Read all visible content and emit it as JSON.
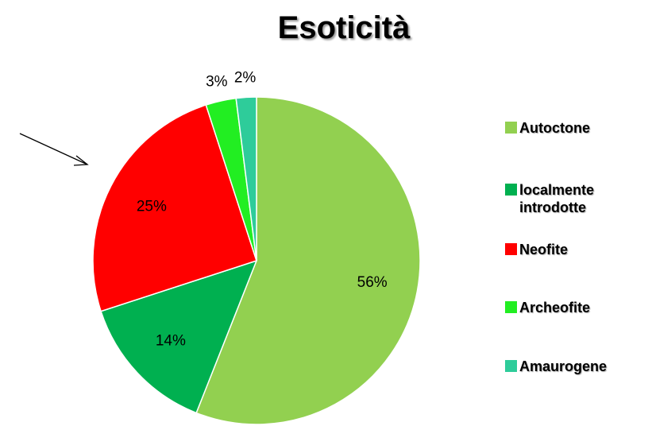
{
  "chart_data": {
    "type": "pie",
    "title": "Esoticità",
    "categories": [
      "Autoctone",
      "localmente introdotte",
      "Neofite",
      "Archeofite",
      "Amaurogene"
    ],
    "values": [
      56,
      14,
      25,
      3,
      2
    ],
    "value_labels": [
      "56%",
      "14%",
      "25%",
      "3%",
      "2%"
    ],
    "colors": [
      "#92d050",
      "#00b050",
      "#ff0000",
      "#22ee22",
      "#2ecc9a"
    ],
    "legend": "right"
  }
}
